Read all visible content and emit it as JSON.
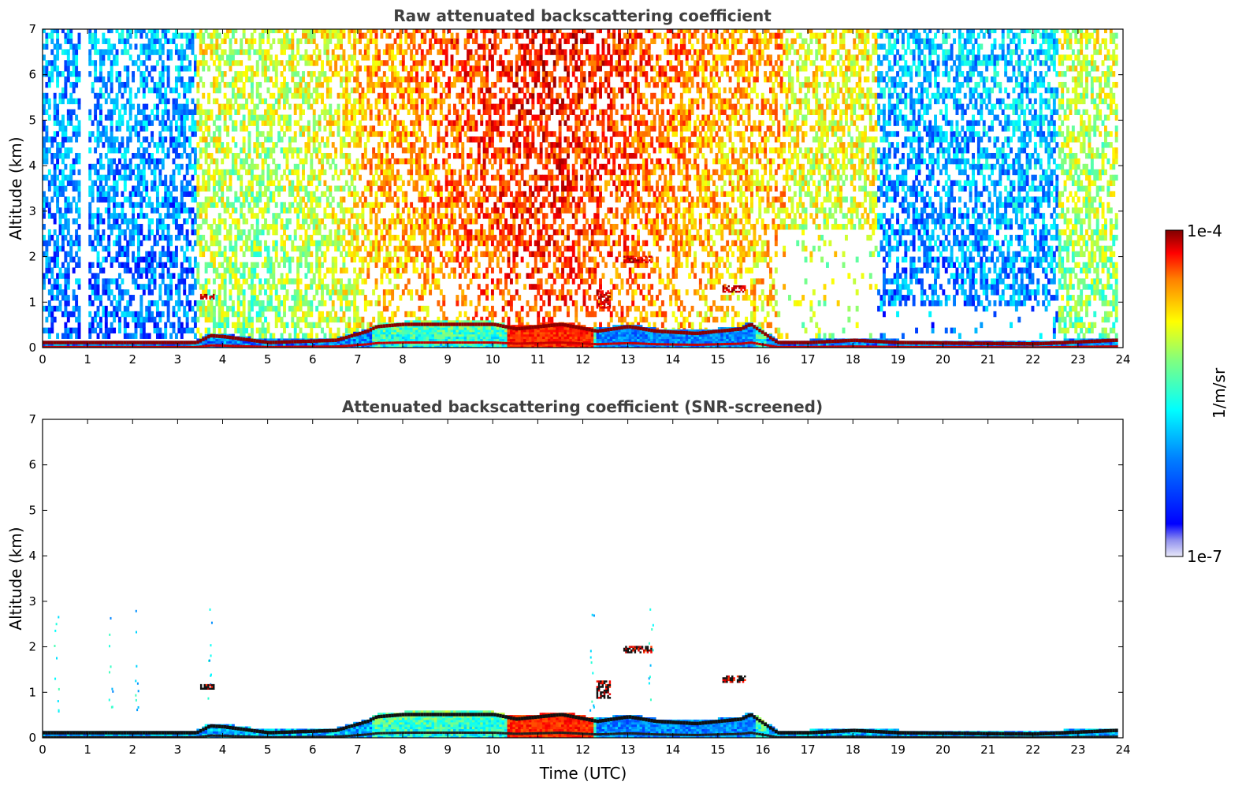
{
  "chart_data": [
    {
      "type": "heatmap",
      "title": "Raw attenuated backscattering coefficient",
      "xlabel": "",
      "ylabel": "Altitude (km)",
      "xlim": [
        0,
        24
      ],
      "ylim": [
        0,
        7
      ],
      "xticks": [
        "0",
        "1",
        "2",
        "3",
        "4",
        "5",
        "6",
        "7",
        "8",
        "9",
        "10",
        "11",
        "12",
        "13",
        "14",
        "15",
        "16",
        "17",
        "18",
        "19",
        "20",
        "21",
        "22",
        "23",
        "24"
      ],
      "yticks": [
        "0",
        "1",
        "2",
        "3",
        "4",
        "5",
        "6",
        "7"
      ],
      "boundary_layer_top_km": [
        [
          0,
          0.15
        ],
        [
          3.4,
          0.15
        ],
        [
          3.7,
          0.3
        ],
        [
          4.0,
          0.28
        ],
        [
          5.0,
          0.15
        ],
        [
          6.5,
          0.2
        ],
        [
          7.2,
          0.4
        ],
        [
          7.4,
          0.5
        ],
        [
          8.0,
          0.55
        ],
        [
          10.0,
          0.55
        ],
        [
          10.5,
          0.45
        ],
        [
          11.0,
          0.5
        ],
        [
          11.5,
          0.55
        ],
        [
          12.3,
          0.4
        ],
        [
          13.0,
          0.5
        ],
        [
          13.6,
          0.4
        ],
        [
          14.5,
          0.35
        ],
        [
          15.5,
          0.45
        ],
        [
          15.7,
          0.55
        ],
        [
          16.3,
          0.15
        ],
        [
          17.0,
          0.15
        ],
        [
          18.0,
          0.2
        ],
        [
          19.0,
          0.15
        ],
        [
          22.0,
          0.12
        ],
        [
          23.8,
          0.2
        ]
      ],
      "clouds_km": [
        {
          "t": [
            3.5,
            3.8
          ],
          "alt": [
            1.1,
            1.2
          ]
        },
        {
          "t": [
            12.9,
            13.5
          ],
          "alt": [
            1.9,
            2.05
          ]
        },
        {
          "t": [
            15.1,
            15.6
          ],
          "alt": [
            1.25,
            1.4
          ]
        },
        {
          "t": [
            12.3,
            12.6
          ],
          "alt": [
            0.9,
            1.3
          ]
        }
      ]
    },
    {
      "type": "heatmap",
      "title": "Attenuated backscattering coefficient (SNR-screened)",
      "xlabel": "Time (UTC)",
      "ylabel": "Altitude (km)",
      "xlim": [
        0,
        24
      ],
      "ylim": [
        0,
        7
      ],
      "xticks": [
        "0",
        "1",
        "2",
        "3",
        "4",
        "5",
        "6",
        "7",
        "8",
        "9",
        "10",
        "11",
        "12",
        "13",
        "14",
        "15",
        "16",
        "17",
        "18",
        "19",
        "20",
        "21",
        "22",
        "23",
        "24"
      ],
      "yticks": [
        "0",
        "1",
        "2",
        "3",
        "4",
        "5",
        "6",
        "7"
      ]
    }
  ],
  "colorbar": {
    "label": "1/m/sr",
    "max_label": "1e-4",
    "min_label": "1e-7",
    "scale": "log",
    "range": [
      1e-07,
      0.0001
    ],
    "colormap": "jet"
  },
  "colors": {
    "jet_stops": [
      "#e8e8f8",
      "#00008f",
      "#0000ff",
      "#0080ff",
      "#00ffff",
      "#80ff80",
      "#ffff00",
      "#ff8000",
      "#ff0000",
      "#800000"
    ]
  }
}
